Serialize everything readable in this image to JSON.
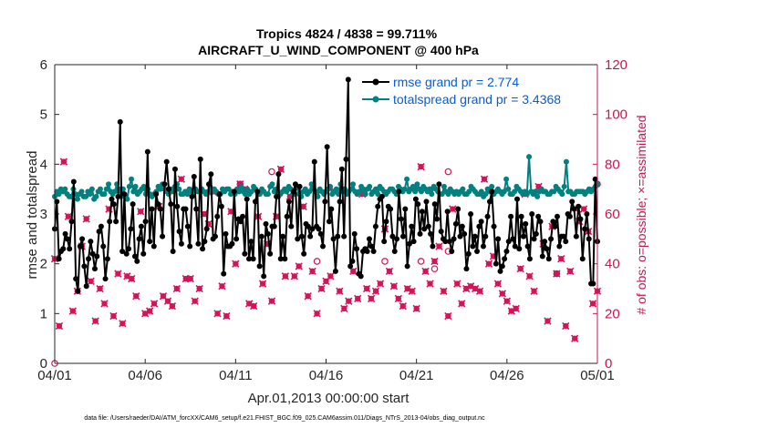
{
  "chart_data": {
    "type": "line",
    "title_line1": "Tropics 4824 / 4838 = 99.711%",
    "title_line2": "AIRCRAFT_U_WIND_COMPONENT @ 400 hPa",
    "xlabel": "Apr.01,2013 00:00:00 start",
    "ylabel": "rmse and totalspread",
    "ylabel_right": "# of obs: o=possible; ×=assimilated",
    "footnote": "data file: /Users/raeder/DAI/ATM_forcXX/CAM6_setup/f.e21.FHIST_BGC.f09_025.CAM6assim.011/Diags_NTrS_2013-04/obs_diag_output.nc",
    "xlim": [
      0,
      30
    ],
    "ylim": [
      0,
      6
    ],
    "ylim_right": [
      0,
      120
    ],
    "x_ticks": [
      0,
      5,
      10,
      15,
      20,
      25,
      30
    ],
    "x_tick_labels": [
      "04/01",
      "04/06",
      "04/11",
      "04/16",
      "04/21",
      "04/26",
      "05/01"
    ],
    "y_ticks": [
      0,
      1,
      2,
      3,
      4,
      5,
      6
    ],
    "y_tick_labels": [
      "0",
      "1",
      "2",
      "3",
      "4",
      "5",
      "6"
    ],
    "y_right_ticks": [
      0,
      20,
      40,
      60,
      80,
      100,
      120
    ],
    "y_right_tick_labels": [
      "0",
      "20",
      "40",
      "60",
      "80",
      "100",
      "120"
    ],
    "colors": {
      "rmse": "#000000",
      "totalspread": "#00807f",
      "obs": "#d4145a",
      "legend_text": "#0a5cd6",
      "right_axis": "#c8174f"
    },
    "series": [
      {
        "name": "rmse grand pr = 2.774",
        "axis": "left",
        "values": [
          2.7,
          3.25,
          2.1,
          2.25,
          2.3,
          2.6,
          2.5,
          2.3,
          2.85,
          3.65,
          1.7,
          1.45,
          2.35,
          2.5,
          1.95,
          1.55,
          2.1,
          2.45,
          2.2,
          1.9,
          2.15,
          2.65,
          2.75,
          2.35,
          1.7,
          2.1,
          2.85,
          3.3,
          3.2,
          2.85,
          3.35,
          4.85,
          2.25,
          3.4,
          2.2,
          2.3,
          2.7,
          3.2,
          2.15,
          2.05,
          2.5,
          2.75,
          2.2,
          2.85,
          4.25,
          2.45,
          3.1,
          2.35,
          3.4,
          3.2,
          3.1,
          2.55,
          3.6,
          4.05,
          3.5,
          3.2,
          2.25,
          3.9,
          3.15,
          2.65,
          2.4,
          3.1,
          3.1,
          2.75,
          2.35,
          3.35,
          3.75,
          3.1,
          2.4,
          4.1,
          2.3,
          2.45,
          2.7,
          3.6,
          3.8,
          2.5,
          2.55,
          2.95,
          3.4,
          3.15,
          1.8,
          2.6,
          2.35,
          2.35,
          2.4,
          3.45,
          2.5,
          2.9,
          2.85,
          2.95,
          2.2,
          3.3,
          2.1,
          2.45,
          2.1,
          3.25,
          3.45,
          1.95,
          2.55,
          1.75,
          2.8,
          2.6,
          2.2,
          2.75,
          2.75,
          3.35,
          3.8,
          2.1,
          2.55,
          2.1,
          2.95,
          3.25,
          2.75,
          3.45,
          3.6,
          2.5,
          3.55,
          2.55,
          2.2,
          2.8,
          2.75,
          2.55,
          2.7,
          4.05,
          2.75,
          2.7,
          2.6,
          2.35,
          3.25,
          4.35,
          2.85,
          3.1,
          2.5,
          1.85,
          2.55,
          3.25,
          3.9,
          2.55,
          4.1,
          5.7,
          1.95,
          2.05,
          2.6,
          2.3,
          1.8,
          1.75,
          2.25,
          2.3,
          2.25,
          2.5,
          2.35,
          2.25,
          2.75,
          3.15,
          3.3,
          3.35,
          2.45,
          2.85,
          3.15,
          3.1,
          2.55,
          2.25,
          2.5,
          3.45,
          2.9,
          2.55,
          3.1,
          1.95,
          2.4,
          2.75,
          2.45,
          3.3,
          3.2,
          2.6,
          3.05,
          2.7,
          3.25,
          2.75,
          2.6,
          2.35,
          3.2,
          2.9,
          3.6,
          2.65,
          2.5,
          2.45,
          3.05,
          2.45,
          2.25,
          2.5,
          2.8,
          3.1,
          2.55,
          2.75,
          2.6,
          1.9,
          2.2,
          3.0,
          2.35,
          2.55,
          2.25,
          2.75,
          2.85,
          2.35,
          2.55,
          2.95,
          3.25,
          3.45,
          2.75,
          2.0,
          2.5,
          1.85,
          1.95,
          2.1,
          2.25,
          2.45,
          2.95,
          2.5,
          2.35,
          3.3,
          2.3,
          2.95,
          2.55,
          2.8,
          2.35,
          2.1,
          3.0,
          2.5,
          2.6,
          2.95,
          2.85,
          2.15,
          2.45,
          2.3,
          2.1,
          2.5,
          2.85,
          2.75,
          2.95,
          2.35,
          2.55,
          2.55,
          2.45,
          3.0,
          2.95,
          3.25,
          3.1,
          2.55,
          3.15,
          2.9,
          2.1,
          2.7,
          3.0,
          2.5,
          1.6,
          1.6,
          3.7,
          2.45
        ]
      },
      {
        "name": "totalspread grand pr = 3.4368",
        "axis": "left",
        "values": [
          3.35,
          3.45,
          3.4,
          3.5,
          3.45,
          3.5,
          3.4,
          3.35,
          3.35,
          3.5,
          3.4,
          3.3,
          3.4,
          3.45,
          3.35,
          3.35,
          3.45,
          3.4,
          3.5,
          3.3,
          3.35,
          3.45,
          3.5,
          3.4,
          3.4,
          3.5,
          3.6,
          3.45,
          3.4,
          3.45,
          3.6,
          3.5,
          3.35,
          3.5,
          3.35,
          3.3,
          3.55,
          3.7,
          3.45,
          3.55,
          3.4,
          3.45,
          3.5,
          3.55,
          3.4,
          3.5,
          3.4,
          3.35,
          3.4,
          3.45,
          3.55,
          3.5,
          3.6,
          3.5,
          3.45,
          3.4,
          3.5,
          3.45,
          3.55,
          3.6,
          3.5,
          3.4,
          3.4,
          3.45,
          3.4,
          3.5,
          3.45,
          3.4,
          3.5,
          3.45,
          3.45,
          3.5,
          3.45,
          3.4,
          3.45,
          3.55,
          3.45,
          3.5,
          3.45,
          3.4,
          3.4,
          3.5,
          3.45,
          3.5,
          3.5,
          3.4,
          3.45,
          3.4,
          3.5,
          3.45,
          3.55,
          3.45,
          3.4,
          3.5,
          3.4,
          3.45,
          3.55,
          3.5,
          3.4,
          3.4,
          3.5,
          3.45,
          3.4,
          3.4,
          3.55,
          3.6,
          3.45,
          3.5,
          3.35,
          3.4,
          3.45,
          3.5,
          3.45,
          3.55,
          3.5,
          3.4,
          3.4,
          3.55,
          3.4,
          3.35,
          3.45,
          3.5,
          3.4,
          3.45,
          3.6,
          3.5,
          3.45,
          3.35,
          3.5,
          3.45,
          3.4,
          3.45,
          3.5,
          3.55,
          3.4,
          3.45,
          3.5,
          3.4,
          3.6,
          3.45,
          3.5,
          3.4,
          3.45,
          3.5,
          3.6,
          3.45,
          3.4,
          3.45,
          3.55,
          3.5,
          3.4,
          3.5,
          3.55,
          3.4,
          3.45,
          3.5,
          3.4,
          3.55,
          3.5,
          3.45,
          3.4,
          3.45,
          3.5,
          3.5,
          3.45,
          3.4,
          3.55,
          3.5,
          3.45,
          3.5,
          3.7,
          3.45,
          3.5,
          3.55,
          3.45,
          3.6,
          3.5,
          3.45,
          3.55,
          3.5,
          3.45,
          3.5,
          3.4,
          3.55,
          3.5,
          3.45,
          3.4,
          3.4,
          3.55,
          3.45,
          3.4,
          3.5,
          3.45,
          3.4,
          3.45,
          3.4,
          3.45,
          3.5,
          3.4,
          3.4,
          3.45,
          3.55,
          3.5,
          3.45,
          3.4,
          3.4,
          3.45,
          3.35,
          3.4,
          3.5,
          3.45,
          3.55,
          3.4,
          3.45,
          3.5,
          3.45,
          3.4,
          3.45,
          3.7,
          3.5,
          3.4,
          3.4,
          3.45,
          3.55,
          3.5,
          3.45,
          3.4,
          3.45,
          3.4,
          4.15,
          3.45,
          3.4,
          3.45,
          3.35,
          3.45,
          3.5,
          3.45,
          3.45,
          3.4,
          3.4,
          3.45,
          3.45,
          3.55,
          3.5,
          3.45,
          3.4,
          3.55,
          4.05,
          3.45,
          3.45,
          3.4,
          3.4,
          3.45,
          3.45,
          3.45,
          3.45,
          3.4,
          3.45,
          3.5,
          3.45,
          3.5,
          3.55,
          3.6
        ]
      }
    ],
    "obs_assimilated": {
      "name": "assimilated obs count",
      "axis": "right",
      "points": [
        [
          0.0,
          42
        ],
        [
          0.25,
          15
        ],
        [
          0.5,
          81
        ],
        [
          0.75,
          59
        ],
        [
          1.0,
          21
        ],
        [
          1.25,
          29
        ],
        [
          1.5,
          47
        ],
        [
          1.75,
          58
        ],
        [
          2.0,
          33
        ],
        [
          2.25,
          17
        ],
        [
          2.5,
          30
        ],
        [
          2.75,
          24
        ],
        [
          3.0,
          62
        ],
        [
          3.25,
          19
        ],
        [
          3.5,
          36
        ],
        [
          3.75,
          16
        ],
        [
          4.0,
          35
        ],
        [
          4.25,
          34
        ],
        [
          4.5,
          27
        ],
        [
          4.75,
          61
        ],
        [
          5.0,
          20
        ],
        [
          5.25,
          21
        ],
        [
          5.5,
          24
        ],
        [
          5.75,
          63
        ],
        [
          6.0,
          27
        ],
        [
          6.25,
          25
        ],
        [
          6.5,
          23
        ],
        [
          6.75,
          30
        ],
        [
          7.0,
          74
        ],
        [
          7.25,
          34
        ],
        [
          7.5,
          34
        ],
        [
          7.75,
          25
        ],
        [
          8.0,
          30
        ],
        [
          8.25,
          60
        ],
        [
          8.5,
          56
        ],
        [
          8.75,
          69
        ],
        [
          9.0,
          20
        ],
        [
          9.25,
          31
        ],
        [
          9.5,
          19
        ],
        [
          9.75,
          61
        ],
        [
          10.0,
          40
        ],
        [
          10.25,
          72
        ],
        [
          10.5,
          70
        ],
        [
          10.75,
          24
        ],
        [
          11.0,
          23
        ],
        [
          11.25,
          59
        ],
        [
          11.5,
          32
        ],
        [
          11.75,
          48
        ],
        [
          12.0,
          25
        ],
        [
          12.25,
          59
        ],
        [
          12.5,
          78
        ],
        [
          12.75,
          35
        ],
        [
          13.0,
          67
        ],
        [
          13.25,
          35
        ],
        [
          13.5,
          39
        ],
        [
          13.75,
          63
        ],
        [
          14.0,
          27
        ],
        [
          14.25,
          37
        ],
        [
          14.5,
          20
        ],
        [
          14.75,
          30
        ],
        [
          15.0,
          33
        ],
        [
          15.25,
          35
        ],
        [
          15.5,
          69
        ],
        [
          15.75,
          29
        ],
        [
          16.0,
          22
        ],
        [
          16.25,
          25
        ],
        [
          16.5,
          37
        ],
        [
          16.75,
          26
        ],
        [
          17.0,
          68
        ],
        [
          17.25,
          30
        ],
        [
          17.5,
          26
        ],
        [
          17.75,
          29
        ],
        [
          18.0,
          32
        ],
        [
          18.25,
          54
        ],
        [
          18.5,
          37
        ],
        [
          18.75,
          31
        ],
        [
          19.0,
          26
        ],
        [
          19.25,
          23
        ],
        [
          19.5,
          30
        ],
        [
          19.75,
          29
        ],
        [
          20.0,
          22
        ],
        [
          20.25,
          79
        ],
        [
          20.5,
          37
        ],
        [
          20.75,
          32
        ],
        [
          21.0,
          41
        ],
        [
          21.25,
          47
        ],
        [
          21.5,
          29
        ],
        [
          21.75,
          19
        ],
        [
          22.0,
          62
        ],
        [
          22.25,
          32
        ],
        [
          22.5,
          24
        ],
        [
          22.75,
          30
        ],
        [
          23.0,
          31
        ],
        [
          23.25,
          30
        ],
        [
          23.5,
          29
        ],
        [
          23.75,
          74
        ],
        [
          24.0,
          40
        ],
        [
          24.25,
          43
        ],
        [
          24.5,
          32
        ],
        [
          24.75,
          28
        ],
        [
          25.0,
          25
        ],
        [
          25.25,
          21
        ],
        [
          25.5,
          22
        ],
        [
          25.75,
          38
        ],
        [
          26.0,
          68
        ],
        [
          26.25,
          35
        ],
        [
          26.5,
          29
        ],
        [
          26.75,
          71
        ],
        [
          27.0,
          48
        ],
        [
          27.25,
          17
        ],
        [
          27.5,
          55
        ],
        [
          27.75,
          36
        ],
        [
          28.0,
          42
        ],
        [
          28.25,
          15
        ],
        [
          28.5,
          37
        ],
        [
          28.75,
          10
        ],
        [
          29.0,
          57
        ],
        [
          29.25,
          62
        ],
        [
          29.5,
          53
        ],
        [
          29.75,
          24
        ],
        [
          30.0,
          29
        ]
      ]
    },
    "obs_possible": {
      "name": "possible obs count",
      "axis": "right",
      "points": [
        [
          0.0,
          0
        ],
        [
          10.25,
          72
        ],
        [
          12.0,
          77
        ],
        [
          14.5,
          41
        ],
        [
          18.25,
          41
        ],
        [
          20.25,
          41
        ],
        [
          21.0,
          38
        ],
        [
          21.75,
          45
        ],
        [
          21.75,
          77
        ],
        [
          27.75,
          36
        ],
        [
          29.0,
          62
        ],
        [
          30.0,
          72
        ]
      ]
    }
  }
}
